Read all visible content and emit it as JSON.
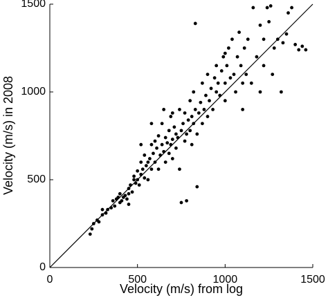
{
  "chart_data": {
    "type": "scatter",
    "x_label": "Velocity (m/s) from log",
    "y_label": "Velocity (m/s) in 2008",
    "color": "#000000",
    "xlim": [
      0,
      1500
    ],
    "ylim": [
      0,
      1500
    ],
    "xticks": [
      0,
      500,
      1000,
      1500
    ],
    "yticks": [
      0,
      500,
      1000,
      1500
    ],
    "reference_line": {
      "x": [
        0,
        1500
      ],
      "y": [
        0,
        1500
      ]
    },
    "x": [
      230,
      240,
      250,
      270,
      280,
      300,
      320,
      330,
      350,
      360,
      370,
      380,
      390,
      400,
      400,
      410,
      420,
      430,
      440,
      450,
      450,
      460,
      470,
      480,
      480,
      490,
      500,
      500,
      510,
      520,
      520,
      530,
      540,
      540,
      550,
      560,
      560,
      570,
      580,
      580,
      590,
      600,
      600,
      610,
      620,
      620,
      630,
      640,
      640,
      650,
      660,
      660,
      670,
      680,
      680,
      690,
      690,
      700,
      700,
      710,
      720,
      720,
      730,
      740,
      740,
      750,
      750,
      760,
      770,
      770,
      780,
      780,
      790,
      800,
      800,
      810,
      810,
      820,
      820,
      830,
      830,
      840,
      840,
      850,
      860,
      870,
      870,
      880,
      890,
      900,
      900,
      910,
      920,
      930,
      940,
      950,
      950,
      960,
      970,
      980,
      990,
      1000,
      1000,
      1010,
      1020,
      1030,
      1040,
      1050,
      1060,
      1070,
      1080,
      1090,
      1100,
      1110,
      1120,
      1130,
      1150,
      1160,
      1180,
      1200,
      1220,
      1240,
      1250,
      1260,
      1270,
      1280,
      1300,
      1320,
      1330,
      1350,
      1360,
      1380,
      1400,
      1420,
      1440,
      1460,
      1200,
      1220,
      1100,
      1000,
      580,
      520,
      450,
      650,
      700,
      300
    ],
    "values": [
      190,
      220,
      250,
      270,
      260,
      300,
      310,
      330,
      340,
      380,
      350,
      390,
      400,
      370,
      420,
      380,
      400,
      410,
      390,
      450,
      360,
      470,
      430,
      500,
      520,
      480,
      500,
      550,
      470,
      530,
      600,
      560,
      510,
      640,
      580,
      600,
      500,
      620,
      560,
      700,
      650,
      600,
      720,
      680,
      560,
      750,
      640,
      700,
      820,
      660,
      600,
      740,
      710,
      780,
      650,
      700,
      860,
      730,
      620,
      800,
      760,
      680,
      740,
      900,
      560,
      780,
      370,
      820,
      720,
      880,
      760,
      380,
      840,
      780,
      950,
      860,
      700,
      820,
      1000,
      900,
      1390,
      760,
      460,
      880,
      940,
      820,
      1050,
      900,
      980,
      860,
      1100,
      950,
      1020,
      900,
      1080,
      1000,
      1150,
      1050,
      980,
      1120,
      1200,
      1050,
      950,
      1150,
      1250,
      1080,
      1300,
      1100,
      1000,
      1200,
      1340,
      1150,
      900,
      1250,
      1100,
      1300,
      1050,
      1480,
      1200,
      1380,
      1300,
      1480,
      1400,
      1490,
      1100,
      1250,
      1300,
      1000,
      1280,
      1330,
      1450,
      1480,
      1270,
      1240,
      1260,
      1240,
      1000,
      1150,
      1050,
      1220,
      820,
      700,
      420,
      900,
      880,
      330
    ]
  }
}
